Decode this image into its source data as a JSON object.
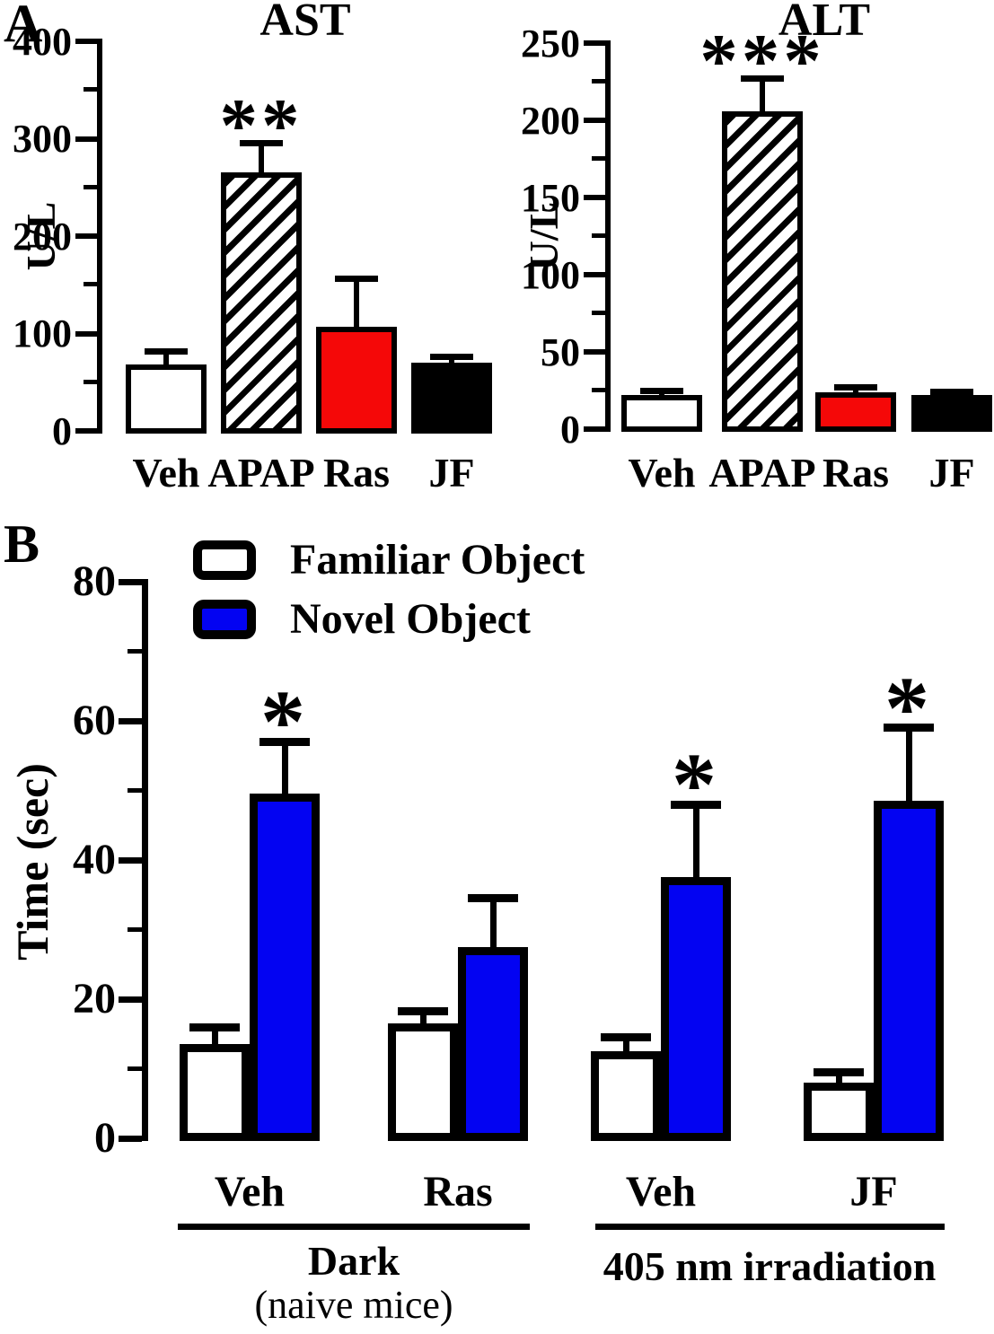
{
  "figure": {
    "panel_a_label": "A",
    "panel_b_label": "B"
  },
  "colors": {
    "bar_blue": "#0303F2",
    "bar_red": "#F50808",
    "bar_black": "#000000",
    "bar_white": "#FFFFFF",
    "axis": "#000000"
  },
  "chart_data": [
    {
      "id": "ast",
      "type": "bar",
      "title": "AST",
      "ylabel": "U/L",
      "ylim": [
        0,
        400
      ],
      "yticks": [
        0,
        100,
        200,
        300,
        400
      ],
      "ytick_step": 100,
      "minor_tick_step": 50,
      "grid": false,
      "categories": [
        "Veh",
        "APAP",
        "Ras",
        "JF"
      ],
      "values": [
        68,
        265,
        107,
        70
      ],
      "errors_plus": [
        14,
        30,
        49,
        6
      ],
      "significance": [
        "",
        "**",
        "",
        ""
      ],
      "bar_styles": [
        "white",
        "hatch",
        "red",
        "black"
      ]
    },
    {
      "id": "alt",
      "type": "bar",
      "title": "ALT",
      "ylabel": "U/L",
      "ylim": [
        0,
        250
      ],
      "yticks": [
        0,
        50,
        100,
        150,
        200,
        250
      ],
      "ytick_step": 50,
      "minor_tick_step": 25,
      "grid": false,
      "categories": [
        "Veh",
        "APAP",
        "Ras",
        "JF"
      ],
      "values": [
        22,
        206,
        24,
        22
      ],
      "errors_plus": [
        3,
        21,
        3,
        2
      ],
      "significance": [
        "",
        "***",
        "",
        ""
      ],
      "bar_styles": [
        "white",
        "hatch",
        "red",
        "black"
      ]
    },
    {
      "id": "nor",
      "type": "grouped-bar",
      "title": "",
      "ylabel": "Time (sec)",
      "ylim": [
        0,
        80
      ],
      "yticks": [
        0,
        20,
        40,
        60,
        80
      ],
      "ytick_step": 20,
      "minor_tick_step": 10,
      "grid": false,
      "legend_position": "top-left",
      "legend": [
        {
          "label": "Familiar Object",
          "style": "white"
        },
        {
          "label": "Novel Object",
          "style": "blue"
        }
      ],
      "group_labels": [
        "Veh",
        "Ras",
        "Veh",
        "JF"
      ],
      "series": [
        {
          "name": "Familiar Object",
          "style": "white",
          "values": [
            13.5,
            16.5,
            12.5,
            8
          ],
          "errors_plus": [
            2.5,
            1.7,
            2,
            1.5
          ],
          "significance": [
            "",
            "",
            "",
            ""
          ]
        },
        {
          "name": "Novel Object",
          "style": "blue",
          "values": [
            49.5,
            27.5,
            37.5,
            48.5
          ],
          "errors_plus": [
            7.5,
            7,
            10.5,
            10.5
          ],
          "significance": [
            "*",
            "",
            "*",
            "*"
          ]
        }
      ],
      "sections": [
        {
          "label": "Dark",
          "sublabel": "(naive mice)",
          "groups": [
            "Veh",
            "Ras"
          ]
        },
        {
          "label": "405 nm irradiation",
          "sublabel": "",
          "groups": [
            "Veh",
            "JF"
          ]
        }
      ]
    }
  ]
}
